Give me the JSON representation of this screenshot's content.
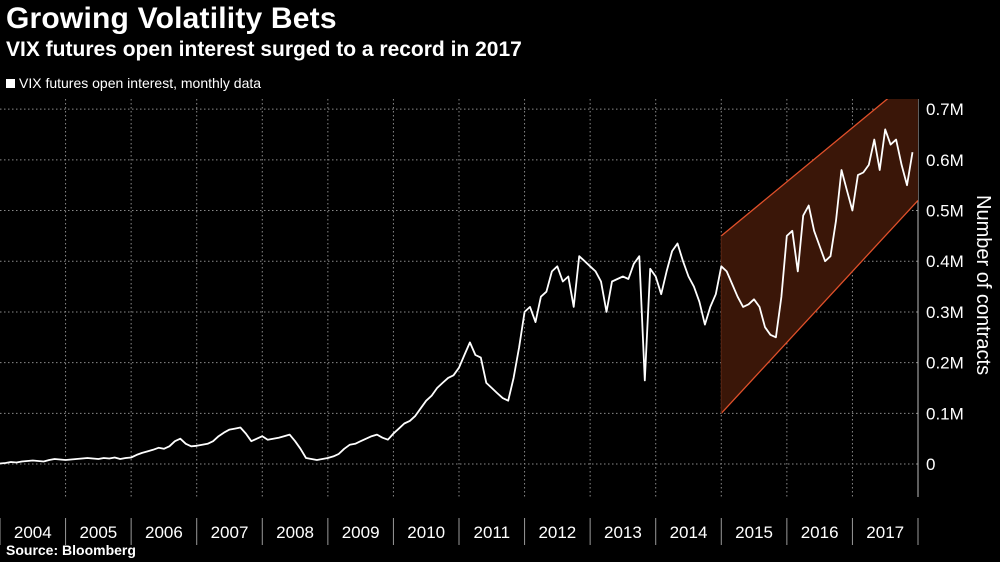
{
  "chart_data": {
    "type": "line",
    "title": "Growing Volatility Bets",
    "subtitle": "VIX futures open interest surged to a record in 2017",
    "legend": [
      "VIX futures open interest, monthly data"
    ],
    "xlabel": "",
    "ylabel": "Number of contracts",
    "ylim": [
      -0.065,
      0.72
    ],
    "y_ticks": [
      0,
      0.1,
      0.2,
      0.3,
      0.4,
      0.5,
      0.6,
      0.7
    ],
    "y_tick_labels": [
      "0",
      "0.1M",
      "0.2M",
      "0.3M",
      "0.4M",
      "0.5M",
      "0.6M",
      "0.7M"
    ],
    "x_tick_labels": [
      "2004",
      "2005",
      "2006",
      "2007",
      "2008",
      "2009",
      "2010",
      "2011",
      "2012",
      "2013",
      "2014",
      "2015",
      "2016",
      "2017"
    ],
    "x_start_year": 2004,
    "x_end": 2018.0,
    "grid": true,
    "trend_channel": {
      "x_start": 2015.0,
      "lower": [
        0.1,
        0.52
      ],
      "upper": [
        0.45,
        0.77
      ]
    },
    "series": [
      {
        "name": "VIX futures open interest, monthly data",
        "x_start": 2004.0,
        "step": 0.08333,
        "values": [
          0.001,
          0.002,
          0.004,
          0.003,
          0.005,
          0.006,
          0.007,
          0.006,
          0.005,
          0.008,
          0.01,
          0.009,
          0.008,
          0.009,
          0.01,
          0.011,
          0.012,
          0.011,
          0.01,
          0.012,
          0.011,
          0.013,
          0.01,
          0.012,
          0.013,
          0.018,
          0.022,
          0.025,
          0.028,
          0.032,
          0.03,
          0.035,
          0.045,
          0.05,
          0.04,
          0.035,
          0.036,
          0.038,
          0.04,
          0.045,
          0.055,
          0.062,
          0.068,
          0.07,
          0.072,
          0.06,
          0.045,
          0.05,
          0.055,
          0.048,
          0.05,
          0.052,
          0.055,
          0.058,
          0.045,
          0.03,
          0.012,
          0.01,
          0.008,
          0.01,
          0.012,
          0.015,
          0.02,
          0.03,
          0.038,
          0.04,
          0.045,
          0.05,
          0.055,
          0.058,
          0.052,
          0.048,
          0.06,
          0.07,
          0.08,
          0.085,
          0.095,
          0.11,
          0.125,
          0.135,
          0.15,
          0.16,
          0.17,
          0.175,
          0.19,
          0.215,
          0.24,
          0.215,
          0.21,
          0.16,
          0.15,
          0.14,
          0.13,
          0.125,
          0.17,
          0.23,
          0.3,
          0.31,
          0.28,
          0.33,
          0.34,
          0.38,
          0.39,
          0.36,
          0.37,
          0.31,
          0.41,
          0.4,
          0.39,
          0.38,
          0.36,
          0.3,
          0.36,
          0.365,
          0.37,
          0.365,
          0.395,
          0.41,
          0.165,
          0.385,
          0.37,
          0.335,
          0.38,
          0.42,
          0.435,
          0.4,
          0.37,
          0.35,
          0.32,
          0.275,
          0.31,
          0.335,
          0.39,
          0.38,
          0.355,
          0.33,
          0.31,
          0.315,
          0.325,
          0.31,
          0.27,
          0.255,
          0.25,
          0.33,
          0.45,
          0.46,
          0.38,
          0.49,
          0.51,
          0.46,
          0.43,
          0.4,
          0.41,
          0.48,
          0.58,
          0.54,
          0.5,
          0.57,
          0.575,
          0.59,
          0.64,
          0.58,
          0.66,
          0.63,
          0.64,
          0.59,
          0.55,
          0.615
        ]
      }
    ]
  }
}
